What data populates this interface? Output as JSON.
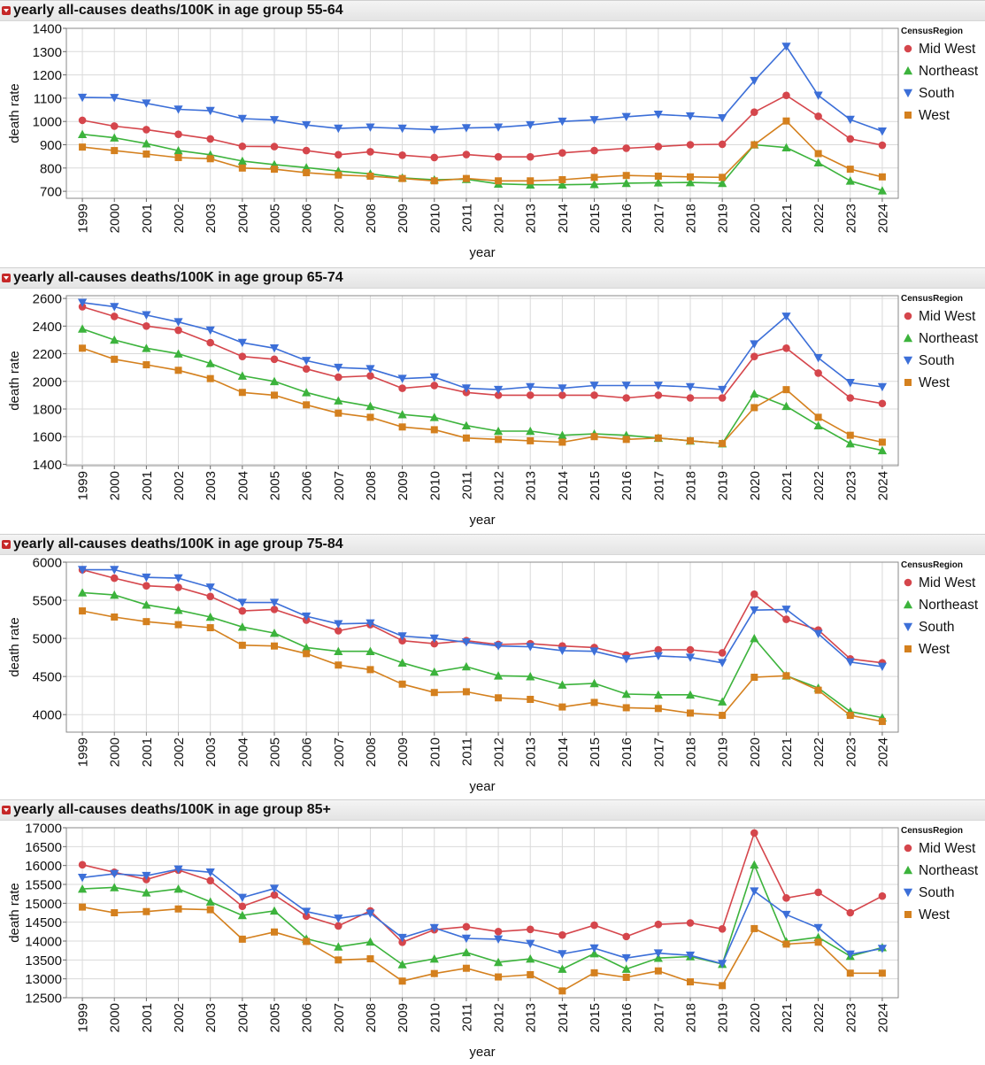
{
  "categories": [
    "1999",
    "2000",
    "2001",
    "2002",
    "2003",
    "2004",
    "2005",
    "2006",
    "2007",
    "2008",
    "2009",
    "2010",
    "2011",
    "2012",
    "2013",
    "2014",
    "2015",
    "2016",
    "2017",
    "2018",
    "2019",
    "2020",
    "2021",
    "2022",
    "2023",
    "2024"
  ],
  "colors": {
    "Mid West": "#d5464c",
    "Northeast": "#3cb33c",
    "South": "#3c6fd8",
    "West": "#d4801e"
  },
  "chart_data": [
    {
      "type": "line",
      "title": "yearly all-causes deaths/100K in age group 55-64",
      "xlabel": "year",
      "ylabel": "death rate",
      "ylim": [
        670,
        1400
      ],
      "yticks": [
        700,
        800,
        900,
        1000,
        1100,
        1200,
        1300,
        1400
      ],
      "legend_title": "CensusRegion",
      "series": [
        {
          "name": "Mid West",
          "marker": "circle",
          "values": [
            1005,
            980,
            965,
            945,
            925,
            893,
            892,
            875,
            857,
            870,
            855,
            845,
            858,
            848,
            848,
            865,
            875,
            885,
            892,
            900,
            902,
            1040,
            1112,
            1022,
            925,
            898
          ]
        },
        {
          "name": "Northeast",
          "marker": "triangle-up",
          "values": [
            945,
            930,
            905,
            875,
            857,
            830,
            815,
            802,
            787,
            775,
            758,
            750,
            752,
            732,
            728,
            728,
            730,
            735,
            737,
            738,
            735,
            900,
            888,
            823,
            745,
            703
          ]
        },
        {
          "name": "South",
          "marker": "triangle-down",
          "values": [
            1103,
            1102,
            1078,
            1052,
            1046,
            1012,
            1007,
            985,
            970,
            975,
            970,
            965,
            972,
            975,
            985,
            1000,
            1007,
            1020,
            1030,
            1023,
            1015,
            1175,
            1322,
            1112,
            1008,
            958
          ]
        },
        {
          "name": "West",
          "marker": "square",
          "values": [
            890,
            875,
            860,
            845,
            840,
            800,
            795,
            780,
            770,
            765,
            755,
            745,
            755,
            745,
            745,
            750,
            760,
            768,
            765,
            762,
            760,
            900,
            1002,
            862,
            795,
            762
          ]
        }
      ]
    },
    {
      "type": "line",
      "title": "yearly all-causes deaths/100K in age group 65-74",
      "xlabel": "year",
      "ylabel": "death rate",
      "ylim": [
        1390,
        2620
      ],
      "yticks": [
        1400,
        1600,
        1800,
        2000,
        2200,
        2400,
        2600
      ],
      "legend_title": "CensusRegion",
      "series": [
        {
          "name": "Mid West",
          "marker": "circle",
          "values": [
            2540,
            2470,
            2400,
            2370,
            2280,
            2180,
            2160,
            2090,
            2030,
            2040,
            1950,
            1970,
            1920,
            1900,
            1900,
            1900,
            1900,
            1880,
            1900,
            1880,
            1880,
            2180,
            2240,
            2060,
            1880,
            1840
          ]
        },
        {
          "name": "Northeast",
          "marker": "triangle-up",
          "values": [
            2380,
            2300,
            2240,
            2200,
            2130,
            2040,
            2000,
            1920,
            1860,
            1820,
            1760,
            1740,
            1680,
            1640,
            1640,
            1610,
            1620,
            1610,
            1590,
            1570,
            1550,
            1910,
            1820,
            1680,
            1550,
            1500
          ]
        },
        {
          "name": "South",
          "marker": "triangle-down",
          "values": [
            2570,
            2540,
            2480,
            2430,
            2370,
            2280,
            2240,
            2150,
            2100,
            2090,
            2020,
            2030,
            1950,
            1940,
            1960,
            1950,
            1970,
            1970,
            1970,
            1960,
            1940,
            2270,
            2470,
            2170,
            1990,
            1960
          ]
        },
        {
          "name": "West",
          "marker": "square",
          "values": [
            2240,
            2160,
            2120,
            2080,
            2020,
            1920,
            1900,
            1830,
            1770,
            1740,
            1670,
            1650,
            1590,
            1580,
            1570,
            1560,
            1600,
            1580,
            1590,
            1570,
            1550,
            1810,
            1940,
            1740,
            1610,
            1560
          ]
        }
      ]
    },
    {
      "type": "line",
      "title": "yearly all-causes deaths/100K in age group 75-84",
      "xlabel": "year",
      "ylabel": "death rate",
      "ylim": [
        3770,
        6000
      ],
      "yticks": [
        4000,
        4500,
        5000,
        5500,
        6000
      ],
      "legend_title": "CensusRegion",
      "series": [
        {
          "name": "Mid West",
          "marker": "circle",
          "values": [
            5900,
            5790,
            5690,
            5670,
            5550,
            5360,
            5380,
            5240,
            5100,
            5180,
            4970,
            4930,
            4970,
            4920,
            4930,
            4900,
            4880,
            4780,
            4850,
            4850,
            4810,
            5580,
            5250,
            5110,
            4730,
            4680
          ]
        },
        {
          "name": "Northeast",
          "marker": "triangle-up",
          "values": [
            5600,
            5570,
            5440,
            5370,
            5280,
            5150,
            5070,
            4880,
            4830,
            4830,
            4680,
            4560,
            4630,
            4510,
            4500,
            4390,
            4410,
            4270,
            4260,
            4260,
            4170,
            5000,
            4510,
            4350,
            4040,
            3960
          ]
        },
        {
          "name": "South",
          "marker": "triangle-down",
          "values": [
            5900,
            5900,
            5800,
            5790,
            5670,
            5470,
            5470,
            5290,
            5190,
            5200,
            5030,
            5000,
            4950,
            4900,
            4890,
            4840,
            4830,
            4730,
            4770,
            4750,
            4680,
            5370,
            5380,
            5060,
            4690,
            4630
          ]
        },
        {
          "name": "West",
          "marker": "square",
          "values": [
            5360,
            5280,
            5220,
            5180,
            5140,
            4910,
            4900,
            4800,
            4650,
            4590,
            4400,
            4290,
            4300,
            4220,
            4200,
            4100,
            4160,
            4090,
            4080,
            4020,
            3990,
            4490,
            4510,
            4320,
            3990,
            3910
          ]
        }
      ]
    },
    {
      "type": "line",
      "title": "yearly all-causes deaths/100K in age group 85+",
      "xlabel": "year",
      "ylabel": "death rate",
      "ylim": [
        12500,
        17000
      ],
      "yticks": [
        12500,
        13000,
        13500,
        14000,
        14500,
        15000,
        15500,
        16000,
        16500,
        17000
      ],
      "legend_title": "CensusRegion",
      "series": [
        {
          "name": "Mid West",
          "marker": "circle",
          "values": [
            16020,
            15820,
            15630,
            15880,
            15600,
            14920,
            15220,
            14660,
            14400,
            14800,
            13970,
            14300,
            14380,
            14250,
            14310,
            14160,
            14420,
            14120,
            14440,
            14480,
            14320,
            16860,
            15140,
            15290,
            14750,
            15190
          ]
        },
        {
          "name": "Northeast",
          "marker": "triangle-up",
          "values": [
            15380,
            15420,
            15280,
            15380,
            15040,
            14680,
            14800,
            14060,
            13850,
            13980,
            13380,
            13530,
            13700,
            13440,
            13530,
            13260,
            13670,
            13260,
            13550,
            13590,
            13390,
            16020,
            13990,
            14100,
            13600,
            13830
          ]
        },
        {
          "name": "South",
          "marker": "triangle-down",
          "values": [
            15680,
            15780,
            15730,
            15900,
            15820,
            15150,
            15390,
            14780,
            14600,
            14730,
            14090,
            14350,
            14070,
            14050,
            13930,
            13660,
            13810,
            13550,
            13680,
            13620,
            13400,
            15320,
            14700,
            14350,
            13650,
            13800
          ]
        },
        {
          "name": "West",
          "marker": "square",
          "values": [
            14900,
            14750,
            14780,
            14850,
            14830,
            14050,
            14240,
            13990,
            13500,
            13530,
            12940,
            13140,
            13280,
            13050,
            13110,
            12680,
            13160,
            13040,
            13210,
            12920,
            12820,
            14330,
            13920,
            13970,
            13150,
            13150
          ]
        }
      ]
    }
  ]
}
